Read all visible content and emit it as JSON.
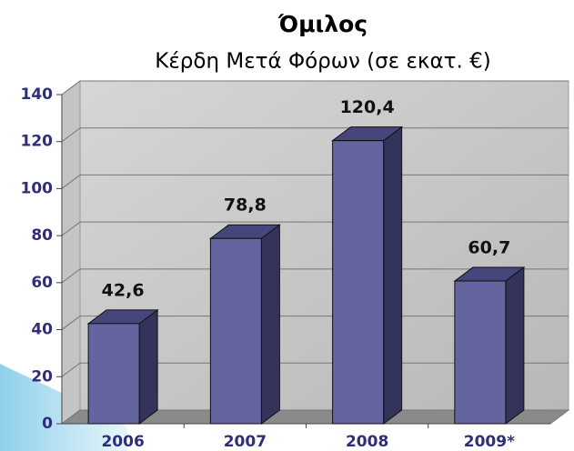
{
  "chart_data": {
    "type": "bar3d",
    "title": "Όμιλος",
    "subtitle": "Κέρδη Μετά Φόρων (σε εκατ. €)",
    "categories": [
      "2006",
      "2007",
      "2008",
      "2009*"
    ],
    "values": [
      42.6,
      78.8,
      120.4,
      60.7
    ],
    "value_labels": [
      "42,6",
      "78,8",
      "120,4",
      "60,7"
    ],
    "color": "#64649e",
    "ylim": [
      0,
      140
    ],
    "yticks": [
      0,
      20,
      40,
      60,
      80,
      100,
      120,
      140
    ],
    "grid": true
  }
}
